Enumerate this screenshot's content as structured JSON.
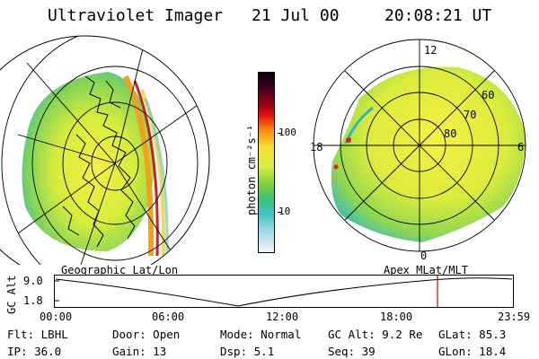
{
  "header": {
    "instrument": "Ultraviolet Imager",
    "date": "21 Jul 00",
    "time": "20:08:21 UT"
  },
  "colorbar": {
    "unit_label": "photon cm⁻²s⁻¹",
    "ticks": [
      "100",
      "10"
    ]
  },
  "polar_plot": {
    "mlt_labels": {
      "top": "12",
      "left": "18",
      "right": "6",
      "bottom": "0"
    },
    "mlat_labels": [
      "60",
      "70",
      "80"
    ]
  },
  "panel_labels": {
    "left": "Geographic Lat/Lon",
    "right": "Apex MLat/MLT"
  },
  "altitude_plot": {
    "axis_label": "GC Alt",
    "y_ticks": [
      "9.0",
      "1.8"
    ],
    "x_ticks": [
      "00:00",
      "06:00",
      "12:00",
      "18:00",
      "23:59"
    ],
    "marker_color": "#cc0000"
  },
  "status": {
    "row1": [
      {
        "label": "Flt:",
        "value": "LBHL"
      },
      {
        "label": "Door:",
        "value": "Open"
      },
      {
        "label": "Mode:",
        "value": "Normal"
      },
      {
        "label": "GC Alt:",
        "value": "9.2 Re"
      },
      {
        "label": "GLat:",
        "value": "85.3"
      }
    ],
    "row2": [
      {
        "label": "IP:",
        "value": "36.0"
      },
      {
        "label": "Gain:",
        "value": "13"
      },
      {
        "label": "Dsp:",
        "value": "5.1"
      },
      {
        "label": "Seq:",
        "value": "39"
      },
      {
        "label": "GLon:",
        "value": "18.4"
      }
    ]
  }
}
